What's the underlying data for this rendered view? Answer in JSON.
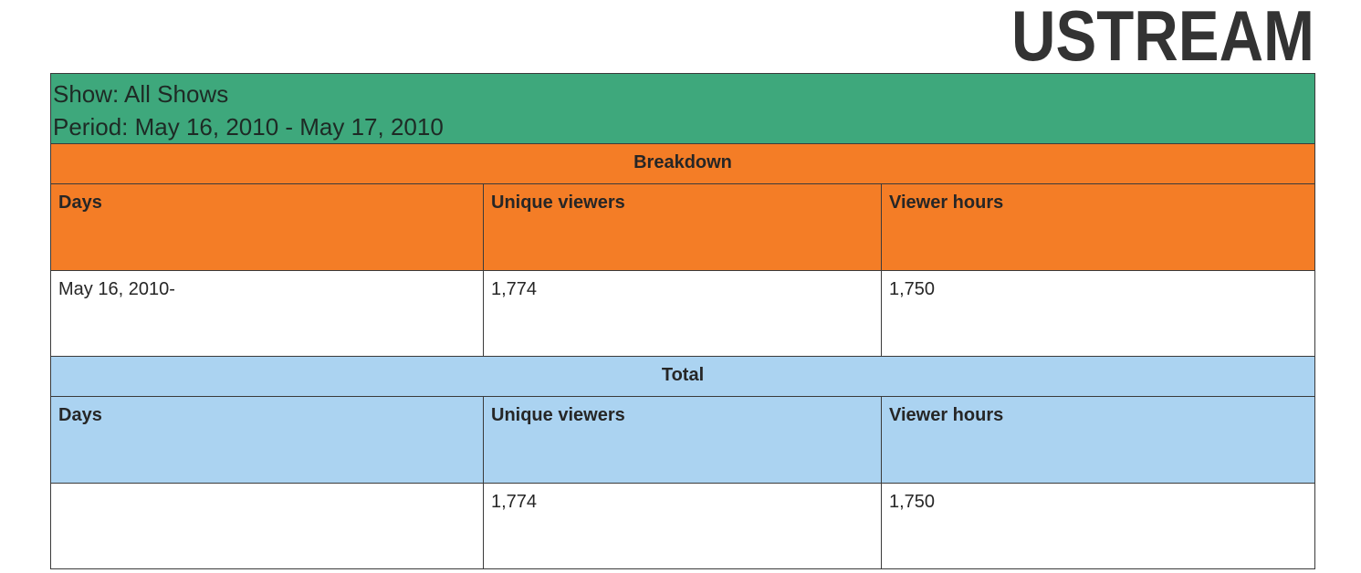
{
  "logo": {
    "text": "USTREAM"
  },
  "report": {
    "show_line": "Show: All Shows",
    "period_line": "Period: May 16, 2010 - May 17, 2010",
    "breakdown": {
      "title": "Breakdown",
      "columns": [
        "Days",
        "Unique viewers",
        "Viewer hours"
      ],
      "rows": [
        {
          "days": "May 16, 2010-",
          "unique_viewers": "1,774",
          "viewer_hours": "1,750"
        }
      ]
    },
    "total": {
      "title": "Total",
      "columns": [
        "Days",
        "Unique viewers",
        "Viewer hours"
      ],
      "row": {
        "days": "",
        "unique_viewers": "1,774",
        "viewer_hours": "1,750"
      }
    }
  },
  "colors": {
    "header_green": "#3ea87c",
    "breakdown_orange": "#f47d26",
    "total_blue": "#abd3f1",
    "logo_dark": "#333333"
  }
}
